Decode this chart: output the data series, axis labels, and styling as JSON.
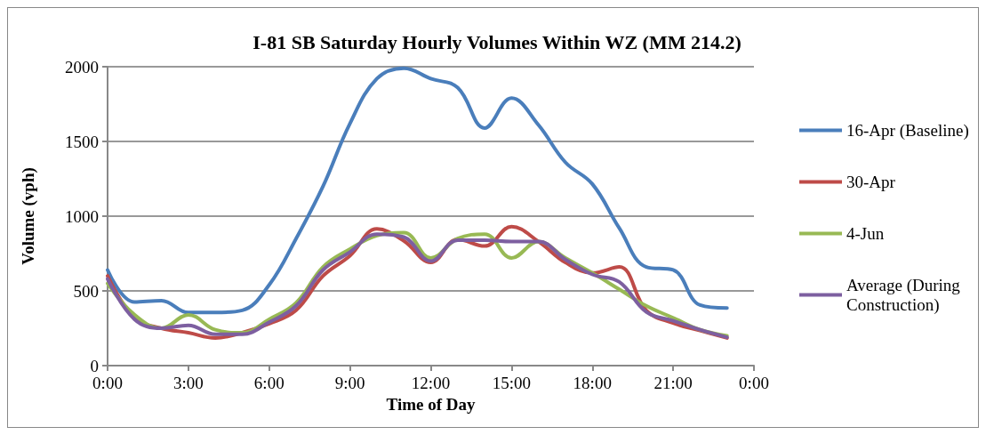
{
  "chart_data": {
    "type": "line",
    "title": "I-81 SB Saturday Hourly Volumes Within WZ (MM 214.2)",
    "xlabel": "Time of Day",
    "ylabel": "Volume (vph)",
    "x": [
      0,
      1,
      2,
      3,
      4,
      5,
      6,
      7,
      8,
      9,
      10,
      11,
      12,
      13,
      14,
      15,
      16,
      17,
      18,
      19,
      20,
      21,
      22,
      23
    ],
    "series": [
      {
        "name": "16-Apr (Baseline)",
        "color": "#4a7ebb",
        "values": [
          640,
          425,
          435,
          355,
          355,
          370,
          540,
          850,
          1200,
          1620,
          1920,
          1990,
          1920,
          1860,
          1590,
          1790,
          1610,
          1360,
          1215,
          920,
          660,
          640,
          405,
          385
        ]
      },
      {
        "name": "30-Apr",
        "color": "#be4b48",
        "values": [
          600,
          320,
          250,
          220,
          185,
          220,
          280,
          370,
          600,
          735,
          915,
          835,
          690,
          845,
          800,
          930,
          830,
          690,
          620,
          660,
          370,
          285,
          235,
          185
        ]
      },
      {
        "name": "4-Jun",
        "color": "#98b954",
        "values": [
          550,
          340,
          250,
          340,
          240,
          220,
          310,
          420,
          660,
          780,
          870,
          890,
          720,
          850,
          880,
          720,
          830,
          720,
          620,
          510,
          400,
          320,
          240,
          200
        ]
      },
      {
        "name": "Average (During Construction)",
        "color": "#7d5fa0",
        "values": [
          580,
          310,
          250,
          270,
          210,
          210,
          290,
          400,
          640,
          760,
          880,
          860,
          700,
          840,
          840,
          830,
          830,
          710,
          610,
          560,
          360,
          300,
          240,
          190
        ]
      }
    ],
    "xlim": [
      0,
      24
    ],
    "xticks": [
      {
        "value": 0,
        "label": "0:00"
      },
      {
        "value": 3,
        "label": "3:00"
      },
      {
        "value": 6,
        "label": "6:00"
      },
      {
        "value": 9,
        "label": "9:00"
      },
      {
        "value": 12,
        "label": "12:00"
      },
      {
        "value": 15,
        "label": "15:00"
      },
      {
        "value": 18,
        "label": "18:00"
      },
      {
        "value": 21,
        "label": "21:00"
      },
      {
        "value": 24,
        "label": "0:00"
      }
    ],
    "ylim": [
      0,
      2000
    ],
    "yticks": [
      0,
      500,
      1000,
      1500,
      2000
    ],
    "grid": "y",
    "legend": "right"
  }
}
